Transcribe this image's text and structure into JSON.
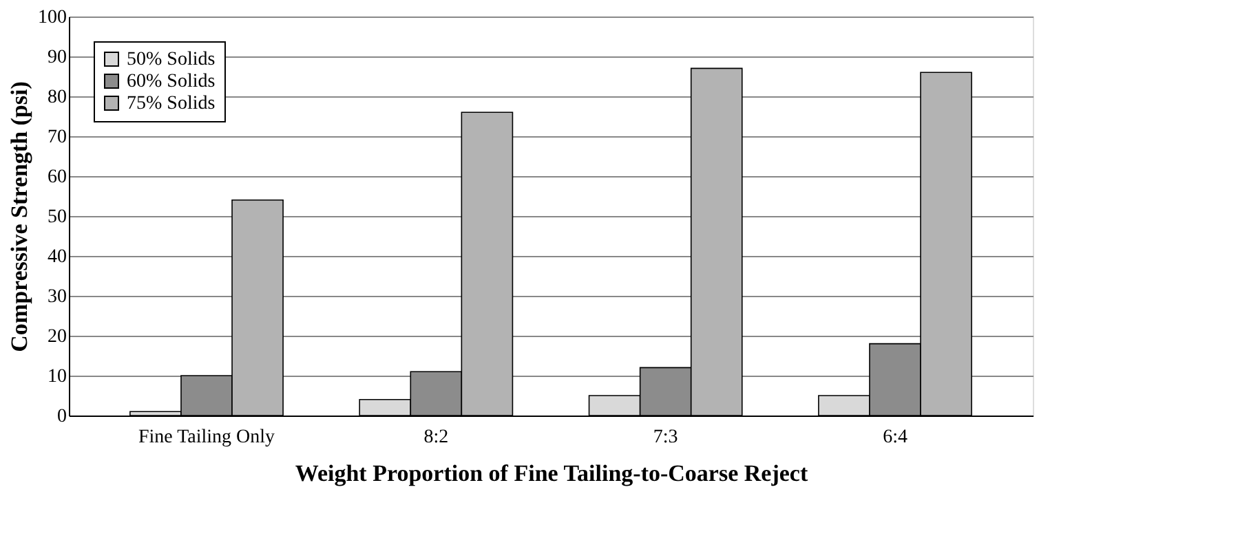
{
  "chart_data": {
    "type": "bar",
    "xlabel": "Weight Proportion of Fine Tailing-to-Coarse Reject",
    "ylabel": "Compressive Strength (psi)",
    "categories": [
      "Fine Tailing Only",
      "8:2",
      "7:3",
      "6:4"
    ],
    "series": [
      {
        "name": "50% Solids",
        "color": "#d9d9d9",
        "values": [
          1,
          4,
          5,
          5
        ]
      },
      {
        "name": "60% Solids",
        "color": "#8c8c8c",
        "values": [
          10,
          11,
          12,
          18
        ]
      },
      {
        "name": "75% Solids",
        "color": "#b3b3b3",
        "values": [
          54,
          76,
          87,
          86
        ]
      }
    ],
    "ylim": [
      0,
      100
    ],
    "yticks": [
      0,
      10,
      20,
      30,
      40,
      50,
      60,
      70,
      80,
      90,
      100
    ],
    "grid": "y",
    "legend": "top left"
  }
}
